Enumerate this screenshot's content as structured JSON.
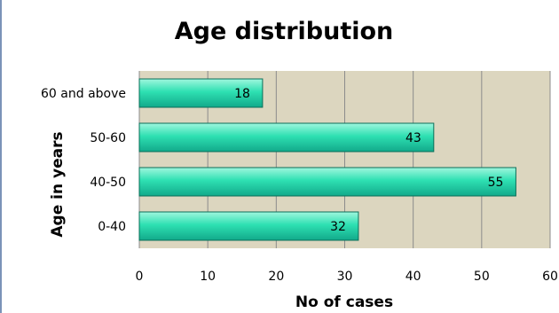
{
  "chart_data": {
    "type": "bar",
    "orientation": "horizontal",
    "title": "Age distribution",
    "xlabel": "No of cases",
    "ylabel": "Age in years",
    "categories": [
      "0-40",
      "40-50",
      "50-60",
      "60 and above"
    ],
    "values": [
      32,
      55,
      43,
      18
    ],
    "xlim": [
      0,
      60
    ],
    "xticks": [
      0,
      10,
      20,
      30,
      40,
      50,
      60
    ],
    "grid": "vertical",
    "legend": "none",
    "colors": {
      "plot_background": "#dcd6bf",
      "gridline": "#8c8c8c",
      "bar_fill_top": "#9ff7de",
      "bar_fill_mid": "#2ee0b2",
      "bar_fill_bottom": "#12a98a",
      "bar_stroke": "#0b6f58"
    }
  }
}
